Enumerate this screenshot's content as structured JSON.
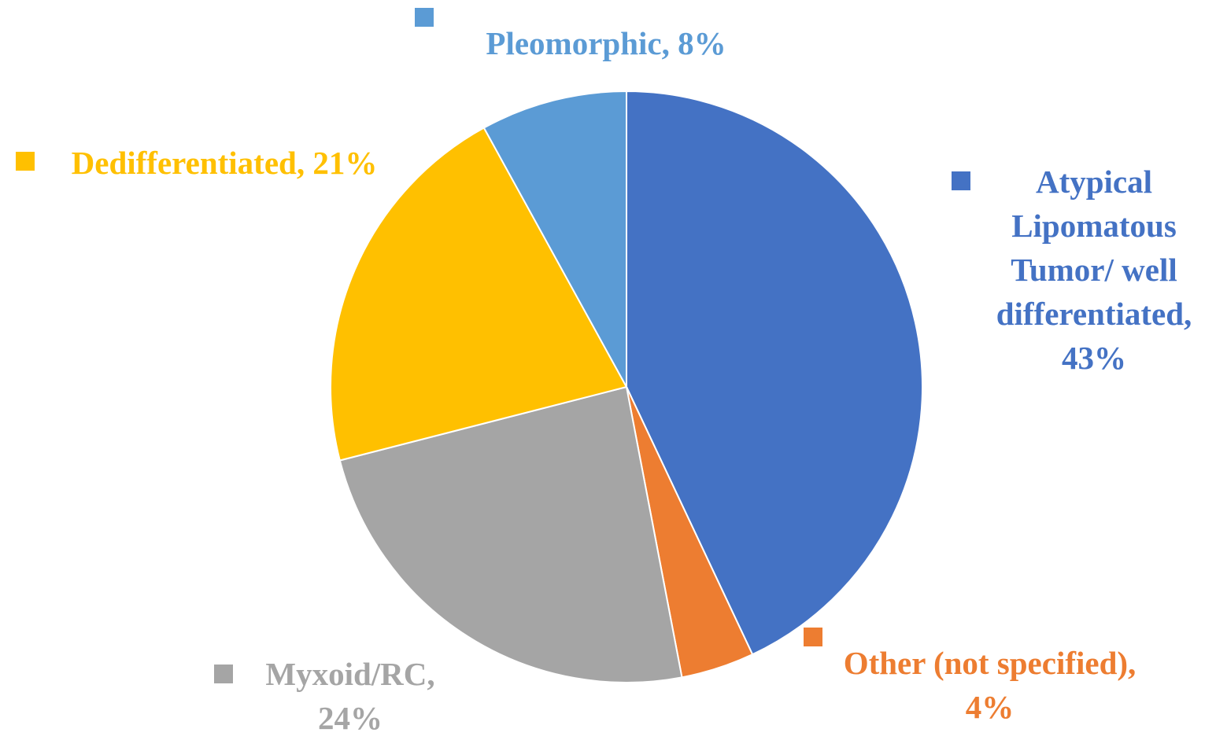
{
  "chart_data": {
    "type": "pie",
    "categories": [
      "Atypical Lipomatous Tumor/ well differentiated",
      "Other (not specified)",
      "Myxoid/RC",
      "Dedifferentiated",
      "Pleomorphic"
    ],
    "values": [
      43,
      4,
      24,
      21,
      8
    ],
    "value_labels": [
      "43%",
      "4%",
      "24%",
      "21%",
      "8%"
    ],
    "colors": [
      "#4472c4",
      "#ed7d31",
      "#a5a5a5",
      "#ffc000",
      "#5b9bd5"
    ]
  }
}
